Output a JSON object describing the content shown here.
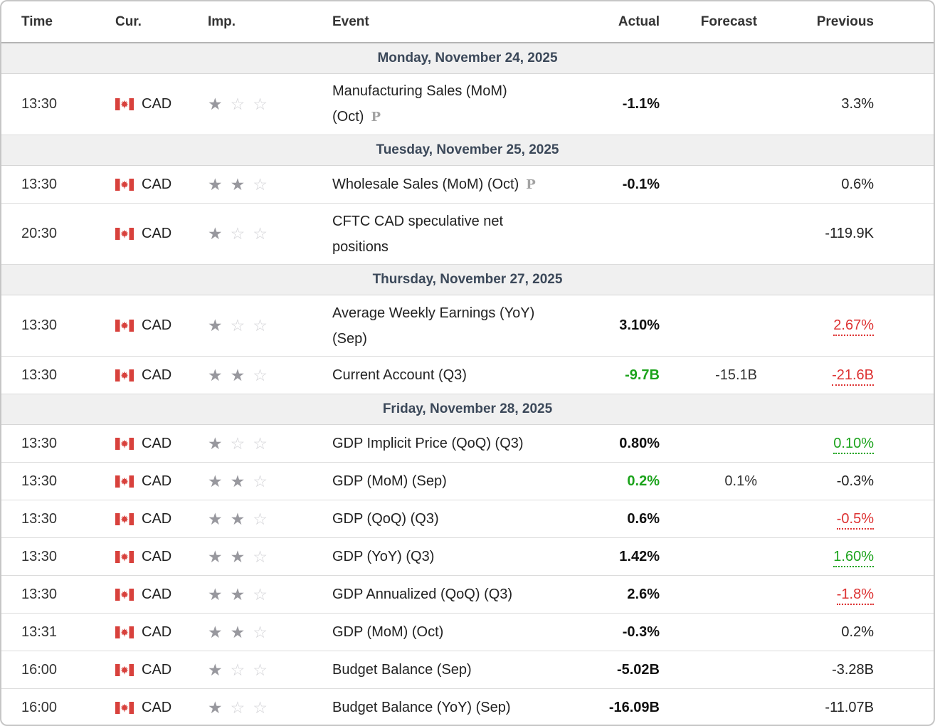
{
  "calendar": {
    "columns": [
      {
        "key": "time",
        "label": "Time"
      },
      {
        "key": "cur",
        "label": "Cur."
      },
      {
        "key": "imp",
        "label": "Imp."
      },
      {
        "key": "event",
        "label": "Event"
      },
      {
        "key": "actual",
        "label": "Actual"
      },
      {
        "key": "forecast",
        "label": "Forecast"
      },
      {
        "key": "previous",
        "label": "Previous"
      }
    ],
    "icons": {
      "star_filled": "★",
      "star_empty": "☆",
      "preliminary": "P",
      "flag": "canada-flag"
    },
    "colors": {
      "green": "#1ca31c",
      "red": "#dd3232",
      "flag_red": "#d8413c",
      "date_text": "#3b4859",
      "band_bg": "#f0f0f0"
    },
    "sections": [
      {
        "date": "Monday, November 24, 2025",
        "rows": [
          {
            "time": "13:30",
            "currency": "CAD",
            "importance": 1,
            "event_lines": [
              "Manufacturing Sales (MoM)",
              "(Oct)"
            ],
            "preliminary": true,
            "actual": {
              "text": "-1.1%",
              "tone": "neutral"
            },
            "forecast": {
              "text": ""
            },
            "previous": {
              "text": "3.3%",
              "tone": "neutral",
              "revised": false
            }
          }
        ]
      },
      {
        "date": "Tuesday, November 25, 2025",
        "rows": [
          {
            "time": "13:30",
            "currency": "CAD",
            "importance": 2,
            "event_lines": [
              "Wholesale Sales (MoM) (Oct)"
            ],
            "preliminary": true,
            "actual": {
              "text": "-0.1%",
              "tone": "neutral"
            },
            "forecast": {
              "text": ""
            },
            "previous": {
              "text": "0.6%",
              "tone": "neutral",
              "revised": false
            }
          },
          {
            "time": "20:30",
            "currency": "CAD",
            "importance": 1,
            "event_lines": [
              "CFTC CAD speculative net",
              "positions"
            ],
            "preliminary": false,
            "actual": {
              "text": "",
              "tone": "neutral"
            },
            "forecast": {
              "text": ""
            },
            "previous": {
              "text": "-119.9K",
              "tone": "neutral",
              "revised": false
            }
          }
        ]
      },
      {
        "date": "Thursday, November 27, 2025",
        "rows": [
          {
            "time": "13:30",
            "currency": "CAD",
            "importance": 1,
            "event_lines": [
              "Average Weekly Earnings (YoY)",
              "(Sep)"
            ],
            "preliminary": false,
            "actual": {
              "text": "3.10%",
              "tone": "neutral"
            },
            "forecast": {
              "text": ""
            },
            "previous": {
              "text": "2.67%",
              "tone": "red",
              "revised": true
            }
          },
          {
            "time": "13:30",
            "currency": "CAD",
            "importance": 2,
            "event_lines": [
              "Current Account (Q3)"
            ],
            "preliminary": false,
            "actual": {
              "text": "-9.7B",
              "tone": "green"
            },
            "forecast": {
              "text": "-15.1B"
            },
            "previous": {
              "text": "-21.6B",
              "tone": "red",
              "revised": true
            }
          }
        ]
      },
      {
        "date": "Friday, November 28, 2025",
        "rows": [
          {
            "time": "13:30",
            "currency": "CAD",
            "importance": 1,
            "event_lines": [
              "GDP Implicit Price (QoQ) (Q3)"
            ],
            "preliminary": false,
            "actual": {
              "text": "0.80%",
              "tone": "neutral"
            },
            "forecast": {
              "text": ""
            },
            "previous": {
              "text": "0.10%",
              "tone": "green",
              "revised": true
            }
          },
          {
            "time": "13:30",
            "currency": "CAD",
            "importance": 2,
            "event_lines": [
              "GDP (MoM) (Sep)"
            ],
            "preliminary": false,
            "actual": {
              "text": "0.2%",
              "tone": "green"
            },
            "forecast": {
              "text": "0.1%"
            },
            "previous": {
              "text": "-0.3%",
              "tone": "neutral",
              "revised": false
            }
          },
          {
            "time": "13:30",
            "currency": "CAD",
            "importance": 2,
            "event_lines": [
              "GDP (QoQ) (Q3)"
            ],
            "preliminary": false,
            "actual": {
              "text": "0.6%",
              "tone": "neutral"
            },
            "forecast": {
              "text": ""
            },
            "previous": {
              "text": "-0.5%",
              "tone": "red",
              "revised": true
            }
          },
          {
            "time": "13:30",
            "currency": "CAD",
            "importance": 2,
            "event_lines": [
              "GDP (YoY) (Q3)"
            ],
            "preliminary": false,
            "actual": {
              "text": "1.42%",
              "tone": "neutral"
            },
            "forecast": {
              "text": ""
            },
            "previous": {
              "text": "1.60%",
              "tone": "green",
              "revised": true
            }
          },
          {
            "time": "13:30",
            "currency": "CAD",
            "importance": 2,
            "event_lines": [
              "GDP Annualized (QoQ) (Q3)"
            ],
            "preliminary": false,
            "actual": {
              "text": "2.6%",
              "tone": "neutral"
            },
            "forecast": {
              "text": ""
            },
            "previous": {
              "text": "-1.8%",
              "tone": "red",
              "revised": true
            }
          },
          {
            "time": "13:31",
            "currency": "CAD",
            "importance": 2,
            "event_lines": [
              "GDP (MoM) (Oct)"
            ],
            "preliminary": false,
            "actual": {
              "text": "-0.3%",
              "tone": "neutral"
            },
            "forecast": {
              "text": ""
            },
            "previous": {
              "text": "0.2%",
              "tone": "neutral",
              "revised": false
            }
          },
          {
            "time": "16:00",
            "currency": "CAD",
            "importance": 1,
            "event_lines": [
              "Budget Balance (Sep)"
            ],
            "preliminary": false,
            "actual": {
              "text": "-5.02B",
              "tone": "neutral"
            },
            "forecast": {
              "text": ""
            },
            "previous": {
              "text": "-3.28B",
              "tone": "neutral",
              "revised": false
            }
          },
          {
            "time": "16:00",
            "currency": "CAD",
            "importance": 1,
            "event_lines": [
              "Budget Balance (YoY) (Sep)"
            ],
            "preliminary": false,
            "actual": {
              "text": "-16.09B",
              "tone": "neutral"
            },
            "forecast": {
              "text": ""
            },
            "previous": {
              "text": "-11.07B",
              "tone": "neutral",
              "revised": false
            }
          }
        ]
      }
    ]
  }
}
